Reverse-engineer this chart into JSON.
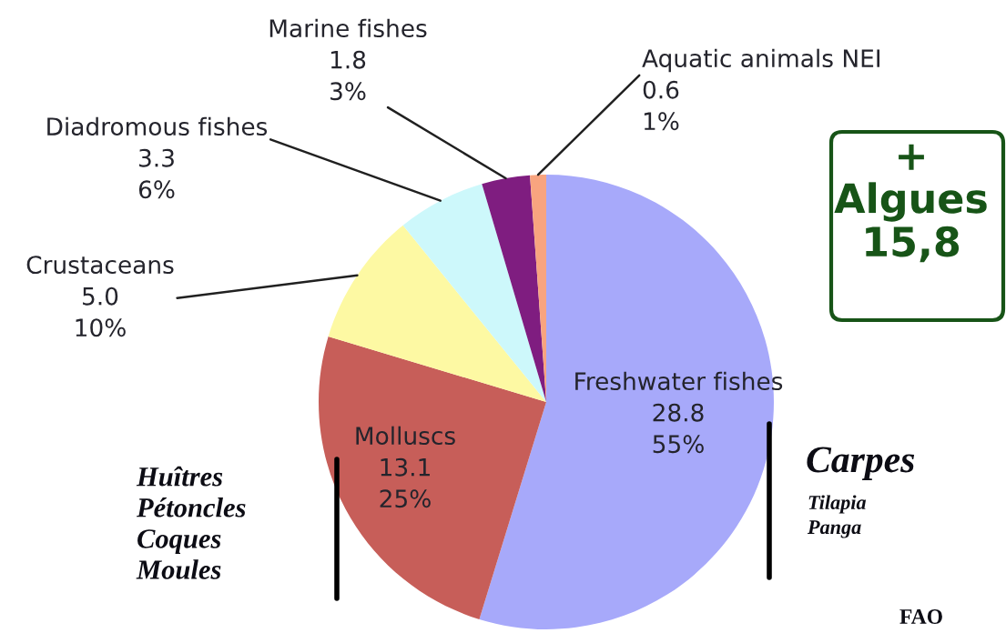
{
  "chart_data": {
    "type": "pie",
    "categories": [
      "Freshwater fishes",
      "Molluscs",
      "Crustaceans",
      "Diadromous fishes",
      "Marine fishes",
      "Aquatic animals NEI"
    ],
    "values": [
      28.8,
      13.1,
      5.0,
      3.3,
      1.8,
      0.6
    ],
    "value_labels": [
      "28.8\n55%",
      "13.1\n25%",
      "5.0\n10%",
      "3.3\n6%",
      "1.8\n3%",
      "0.6\n1%"
    ],
    "colors": [
      "#a7a9fa",
      "#c75e59",
      "#fdf9a3",
      "#cdf8fb",
      "#7f1d80",
      "#f8a47f"
    ],
    "annotations": [
      "+\nAlgues\n15,8",
      "Huîtres\nPétoncles\nCoques\nMoules",
      "Carpes",
      "Tilapia\nPanga",
      "FAO"
    ]
  }
}
